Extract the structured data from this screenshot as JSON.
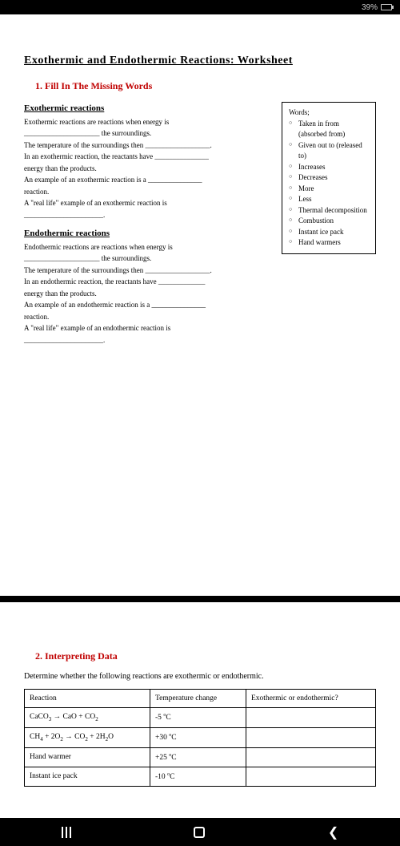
{
  "status": {
    "battery_pct": "39%"
  },
  "page1": {
    "title": "Exothermic  and  Endothermic  Reactions:  Worksheet",
    "heading1": "1.  Fill In The Missing Words",
    "exo": {
      "title": "Exothermic reactions",
      "l1": "Exothermic reactions are reactions when energy is",
      "l2": "_____________________ the surroundings.",
      "l3": "The temperature of the surroundings then __________________.",
      "l4": "In an exothermic reaction, the reactants have _______________",
      "l5": "energy than the products.",
      "l6": "An example of an exothermic reaction is a _______________",
      "l7": "reaction.",
      "l8": "A \"real life\" example of an exothermic reaction is",
      "l9": "______________________."
    },
    "endo": {
      "title": "Endothermic reactions",
      "l1": "Endothermic reactions are reactions when energy is",
      "l2": "_____________________ the surroundings.",
      "l3": "The temperature of the surroundings then __________________.",
      "l4": "In an endothermic reaction, the reactants have _____________",
      "l5": "energy than the products.",
      "l6": "An example of an endothermic reaction is a _______________",
      "l7": "reaction.",
      "l8": "A \"real life\" example of an endothermic reaction is",
      "l9": "______________________."
    },
    "wordbox": {
      "title": "Words;",
      "items": [
        "Taken in from (absorbed from)",
        "Given out to (released to)",
        "Increases",
        "Decreases",
        "More",
        "Less",
        "Thermal decomposition",
        "Combustion",
        "Instant ice pack",
        "Hand warmers"
      ]
    }
  },
  "page2": {
    "heading": "2.  Interpreting Data",
    "intro": "Determine whether the following reactions are exothermic or endothermic.",
    "table": {
      "headers": [
        "Reaction",
        "Temperature change",
        "Exothermic or endothermic?"
      ],
      "rows": [
        {
          "reaction_html": "CaCO<sub>3</sub> → CaO + CO<sub>2</sub>",
          "temp_html": "-5 <sup>o</sup>C",
          "result": ""
        },
        {
          "reaction_html": "CH<sub>4</sub> + 2O<sub>2</sub> → CO<sub>2</sub> + 2H<sub>2</sub>O",
          "temp_html": "+30 <sup>o</sup>C",
          "result": ""
        },
        {
          "reaction_html": "Hand warmer",
          "temp_html": "+25 <sup>o</sup>C",
          "result": ""
        },
        {
          "reaction_html": "Instant ice pack",
          "temp_html": "-10 <sup>o</sup>C",
          "result": ""
        }
      ]
    }
  },
  "colors": {
    "accent": "#c00000",
    "page_bg": "#ffffff",
    "frame_bg": "#000000",
    "text": "#000000"
  },
  "typography": {
    "body_font": "Georgia, Times New Roman, serif",
    "title_fontsize_pt": 14,
    "heading_fontsize_pt": 12,
    "body_fontsize_pt": 9
  }
}
